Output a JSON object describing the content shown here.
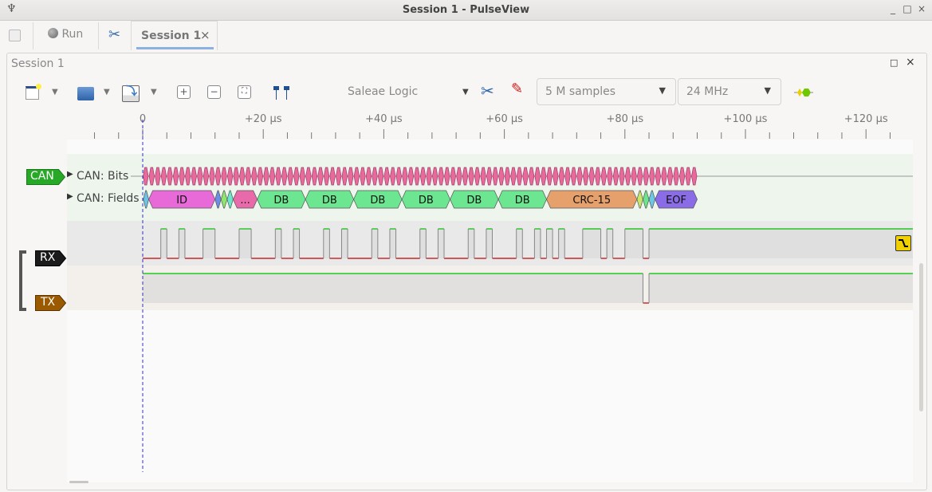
{
  "window": {
    "title": "Session 1 - PulseView",
    "controls": [
      "_",
      "□",
      "×"
    ]
  },
  "tabbar": {
    "run_label": "Run",
    "session_tab": "Session 1",
    "close": "×"
  },
  "dock": {
    "title": "Session 1",
    "controls": [
      "□",
      "×"
    ]
  },
  "toolbar": {
    "device": "Saleae Logic",
    "samples": "5 M samples",
    "samplerate": "24 MHz",
    "icons": [
      "new-session-icon",
      "open-icon",
      "save-icon",
      "zoom-in-icon",
      "zoom-out-icon",
      "zoom-fit-icon",
      "cursor-icon",
      "device-config-icon",
      "probe-icon",
      "decoder-icon"
    ]
  },
  "ruler": {
    "labels": [
      "0",
      "+20 µs",
      "+40 µs",
      "+60 µs",
      "+80 µs",
      "+100 µs",
      "+120 µs"
    ],
    "major_us": [
      0,
      20,
      40,
      60,
      80,
      100,
      120
    ],
    "minor_step_us": 4
  },
  "decoder": {
    "name": "CAN",
    "color": "#27a827",
    "rows": [
      "CAN: Bits",
      "CAN: Fields"
    ],
    "bits_start_us": 0,
    "bits_end_us": 92,
    "bit_color": "#e86a9a",
    "fields": [
      {
        "label": "",
        "start": 0.1,
        "end": 1,
        "color": "#6cc3e6"
      },
      {
        "label": "ID",
        "start": 1,
        "end": 12,
        "color": "#e86ad9"
      },
      {
        "label": "",
        "start": 12,
        "end": 13,
        "color": "#6c8fe6"
      },
      {
        "label": "",
        "start": 13,
        "end": 14,
        "color": "#8fe66c"
      },
      {
        "label": "",
        "start": 14,
        "end": 15,
        "color": "#6ce6c8"
      },
      {
        "label": "...",
        "start": 15,
        "end": 19,
        "color": "#e86aaa"
      },
      {
        "label": "DB",
        "start": 19,
        "end": 27,
        "color": "#6ce690"
      },
      {
        "label": "DB",
        "start": 27,
        "end": 35,
        "color": "#6ce690"
      },
      {
        "label": "DB",
        "start": 35,
        "end": 43,
        "color": "#6ce690"
      },
      {
        "label": "DB",
        "start": 43,
        "end": 51,
        "color": "#6ce690"
      },
      {
        "label": "DB",
        "start": 51,
        "end": 59,
        "color": "#6ce690"
      },
      {
        "label": "DB",
        "start": 59,
        "end": 67,
        "color": "#6ce690"
      },
      {
        "label": "CRC-15",
        "start": 67,
        "end": 82,
        "color": "#e6a06c"
      },
      {
        "label": "",
        "start": 82,
        "end": 83,
        "color": "#c8e66c"
      },
      {
        "label": "",
        "start": 83,
        "end": 84,
        "color": "#6ce68a"
      },
      {
        "label": "",
        "start": 84,
        "end": 85,
        "color": "#6cc8e6"
      },
      {
        "label": "EOF",
        "start": 85,
        "end": 92,
        "color": "#8a6ce6"
      }
    ]
  },
  "channels": [
    {
      "name": "RX",
      "color": "#1b1b1b",
      "high_intervals_us": [
        [
          3,
          4
        ],
        [
          6,
          7
        ],
        [
          10,
          12
        ],
        [
          16,
          18
        ],
        [
          22,
          23
        ],
        [
          25,
          26
        ],
        [
          30,
          31
        ],
        [
          33,
          34
        ],
        [
          38,
          39
        ],
        [
          41,
          42
        ],
        [
          46,
          47
        ],
        [
          49,
          50
        ],
        [
          54,
          55
        ],
        [
          57,
          58
        ],
        [
          62,
          63
        ],
        [
          65,
          66
        ],
        [
          67,
          68
        ],
        [
          69,
          70
        ],
        [
          73,
          76
        ],
        [
          77,
          78
        ],
        [
          80,
          83
        ],
        [
          84,
          128
        ]
      ],
      "trigger": "falling-edge"
    },
    {
      "name": "TX",
      "color": "#9c5a00",
      "low_intervals_us": [
        [
          83,
          84
        ]
      ]
    }
  ],
  "colors": {
    "high": "#00c000",
    "low": "#c00000",
    "cursor": "#3030c0"
  }
}
